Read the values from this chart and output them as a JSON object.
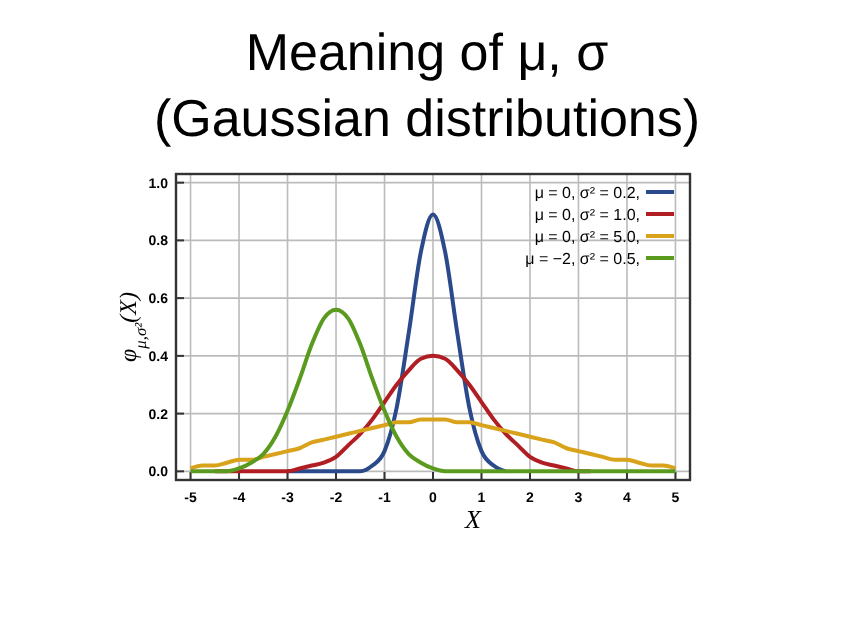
{
  "chart_data": {
    "type": "line",
    "title": "Meaning of μ, σ",
    "subtitle": "(Gaussian distributions)",
    "xlabel": "X",
    "ylabel": "φ$_{μ,σ²}$(X)",
    "x": [
      -5,
      -4.75,
      -4.5,
      -4.25,
      -4,
      -3.75,
      -3.5,
      -3.25,
      -3,
      -2.75,
      -2.5,
      -2.25,
      -2,
      -1.75,
      -1.5,
      -1.25,
      -1,
      -0.75,
      -0.5,
      -0.25,
      0,
      0.25,
      0.5,
      0.75,
      1,
      1.25,
      1.5,
      1.75,
      2,
      2.25,
      2.5,
      2.75,
      3,
      3.25,
      3.5,
      3.75,
      4,
      4.25,
      4.5,
      4.75,
      5
    ],
    "series": [
      {
        "name": "μ = 0,   σ² = 0.2,",
        "color": "#2a4a8c",
        "values": [
          null,
          null,
          null,
          null,
          null,
          null,
          null,
          null,
          0,
          0,
          0,
          0,
          0,
          0,
          0,
          0.02,
          0.07,
          0.22,
          0.48,
          0.76,
          0.89,
          0.76,
          0.48,
          0.22,
          0.07,
          0.02,
          0,
          null,
          null,
          null,
          null,
          null,
          null,
          null,
          null,
          null,
          null,
          null,
          null,
          null,
          null
        ]
      },
      {
        "name": "μ = 0,   σ² = 1.0,",
        "color": "#b01e23",
        "values": [
          null,
          null,
          0,
          0,
          0,
          0,
          0,
          0,
          0,
          0.01,
          0.02,
          0.03,
          0.05,
          0.09,
          0.13,
          0.18,
          0.24,
          0.3,
          0.35,
          0.39,
          0.4,
          0.39,
          0.35,
          0.3,
          0.24,
          0.18,
          0.13,
          0.09,
          0.05,
          0.03,
          0.02,
          0.01,
          0,
          0,
          null,
          null,
          null,
          null,
          null,
          null,
          null
        ]
      },
      {
        "name": "μ = 0,   σ² = 5.0,",
        "color": "#d9a21b",
        "values": [
          0.01,
          0.02,
          0.02,
          0.03,
          0.04,
          0.04,
          0.05,
          0.06,
          0.07,
          0.08,
          0.1,
          0.11,
          0.12,
          0.13,
          0.14,
          0.15,
          0.16,
          0.17,
          0.17,
          0.18,
          0.18,
          0.18,
          0.17,
          0.17,
          0.16,
          0.15,
          0.14,
          0.13,
          0.12,
          0.11,
          0.1,
          0.08,
          0.07,
          0.06,
          0.05,
          0.04,
          0.04,
          0.03,
          0.02,
          0.02,
          0.01
        ]
      },
      {
        "name": "μ = −2, σ² = 0.5,",
        "color": "#5a9a1e",
        "values": [
          0,
          0,
          0,
          0,
          0.01,
          0.03,
          0.06,
          0.12,
          0.21,
          0.32,
          0.44,
          0.53,
          0.56,
          0.53,
          0.44,
          0.32,
          0.21,
          0.12,
          0.06,
          0.03,
          0.01,
          0,
          0,
          0,
          0,
          0,
          0,
          0,
          0,
          0,
          0,
          0,
          0,
          0,
          0,
          0,
          0,
          0,
          0,
          0,
          0
        ]
      }
    ],
    "xlim": [
      -5.3,
      5.3
    ],
    "ylim": [
      -0.03,
      1.03
    ],
    "xticks": [
      -5,
      -4,
      -3,
      -2,
      -1,
      0,
      1,
      2,
      3,
      4,
      5
    ],
    "yticks": [
      {
        "value": 0,
        "label": "0.0"
      },
      {
        "value": 0.2,
        "label": "0.2"
      },
      {
        "value": 0.4,
        "label": "0.4"
      },
      {
        "value": 0.6,
        "label": "0.6"
      },
      {
        "value": 0.8,
        "label": "0.8"
      },
      {
        "value": 1,
        "label": "1.0"
      }
    ],
    "grid": true,
    "legend": "top right",
    "marker": "none",
    "line_style": "solid"
  }
}
